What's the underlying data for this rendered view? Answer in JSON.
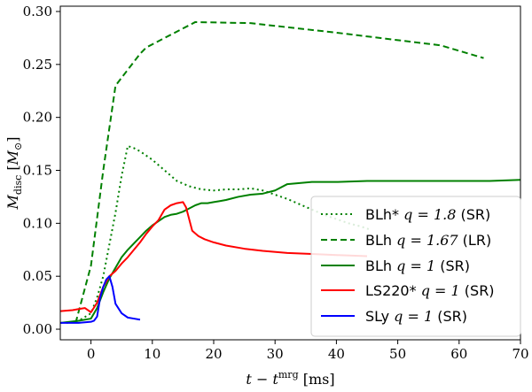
{
  "chart_data": {
    "type": "line",
    "xlabel": "t − t^mrg [ms]",
    "ylabel": "M_disc [M_⊙]",
    "xlim": [
      -5,
      70
    ],
    "ylim": [
      -0.01,
      0.305
    ],
    "grid": false,
    "legend_position": "lower-right",
    "x_ticks": [
      0,
      10,
      20,
      30,
      40,
      50,
      60,
      70
    ],
    "x_tick_labels": [
      "0",
      "10",
      "20",
      "30",
      "40",
      "50",
      "60",
      "70"
    ],
    "y_ticks": [
      0.0,
      0.05,
      0.1,
      0.15,
      0.2,
      0.25,
      0.3
    ],
    "y_tick_labels": [
      "0.00",
      "0.05",
      "0.10",
      "0.15",
      "0.20",
      "0.25",
      "0.30"
    ],
    "series": [
      {
        "name": "BLh* q = 1.8 (SR)",
        "label_model": "BLh*",
        "label_q": "q = 1.8",
        "label_res": "(SR)",
        "color": "#008000",
        "dash": "dotted",
        "x": [
          -4.0,
          -2.0,
          0.0,
          1.0,
          2.0,
          3.0,
          4.0,
          5.0,
          6.0,
          7.0,
          8.0,
          10.0,
          12.0,
          14.0,
          16.0,
          18.0,
          20.0,
          22.0,
          24.0,
          26.0,
          28.0,
          30.0,
          32.0,
          34.0,
          36.0,
          38.0,
          40.0,
          42.0,
          44.0,
          45.5
        ],
        "y": [
          0.006,
          0.008,
          0.015,
          0.03,
          0.05,
          0.08,
          0.11,
          0.145,
          0.173,
          0.171,
          0.168,
          0.16,
          0.15,
          0.14,
          0.135,
          0.132,
          0.131,
          0.132,
          0.132,
          0.133,
          0.131,
          0.127,
          0.123,
          0.118,
          0.113,
          0.108,
          0.104,
          0.1,
          0.097,
          0.094
        ]
      },
      {
        "name": "BLh q = 1.67 (LR)",
        "label_model": "BLh",
        "label_q": "q = 1.67",
        "label_res": "(LR)",
        "color": "#008000",
        "dash": "dashed",
        "x": [
          -2.5,
          0.0,
          2.0,
          4.0,
          6.0,
          8.0,
          9.0,
          12.0,
          17.0,
          26.0,
          40.0,
          57.0,
          64.0
        ],
        "y": [
          0.006,
          0.06,
          0.15,
          0.23,
          0.245,
          0.26,
          0.266,
          0.275,
          0.29,
          0.289,
          0.28,
          0.268,
          0.256
        ]
      },
      {
        "name": "BLh q = 1 (SR)",
        "label_model": "BLh",
        "label_q": "q = 1",
        "label_res": "(SR)",
        "color": "#008000",
        "dash": "solid",
        "x": [
          -5.0,
          -2.0,
          0.0,
          1.0,
          2.0,
          3.0,
          4.0,
          5.0,
          6.0,
          7.0,
          8.0,
          9.0,
          10.0,
          11.0,
          12.0,
          13.0,
          14.0,
          15.0,
          16.0,
          17.0,
          18.0,
          19.0,
          20.0,
          21.0,
          22.0,
          24.0,
          26.0,
          28.0,
          30.0,
          32.0,
          34.0,
          36.0,
          40.0,
          45.0,
          50.0,
          55.0,
          60.0,
          65.0,
          70.0
        ],
        "y": [
          0.006,
          0.008,
          0.01,
          0.02,
          0.035,
          0.048,
          0.058,
          0.068,
          0.075,
          0.081,
          0.087,
          0.093,
          0.098,
          0.102,
          0.106,
          0.108,
          0.109,
          0.111,
          0.114,
          0.117,
          0.119,
          0.119,
          0.12,
          0.121,
          0.122,
          0.125,
          0.127,
          0.128,
          0.131,
          0.137,
          0.138,
          0.139,
          0.139,
          0.14,
          0.14,
          0.14,
          0.14,
          0.14,
          0.141
        ]
      },
      {
        "name": "LS220* q = 1 (SR)",
        "label_model": "LS220*",
        "label_q": "q = 1",
        "label_res": "(SR)",
        "color": "#ff0000",
        "dash": "solid",
        "x": [
          -5.0,
          -3.0,
          -2.0,
          -1.0,
          0.0,
          1.0,
          2.0,
          3.0,
          4.0,
          5.0,
          6.0,
          7.0,
          8.0,
          9.0,
          10.0,
          11.0,
          12.0,
          13.0,
          14.0,
          15.0,
          15.5,
          16.5,
          17.5,
          18.5,
          20.0,
          22.0,
          25.0,
          28.0,
          32.0,
          36.0,
          40.0,
          45.0
        ],
        "y": [
          0.017,
          0.018,
          0.019,
          0.02,
          0.016,
          0.025,
          0.04,
          0.05,
          0.055,
          0.062,
          0.068,
          0.075,
          0.082,
          0.09,
          0.097,
          0.103,
          0.113,
          0.117,
          0.119,
          0.12,
          0.115,
          0.093,
          0.088,
          0.085,
          0.082,
          0.079,
          0.076,
          0.074,
          0.072,
          0.071,
          0.07,
          0.069
        ]
      },
      {
        "name": "SLy q = 1 (SR)",
        "label_model": "SLy",
        "label_q": "q = 1",
        "label_res": "(SR)",
        "color": "#0000ff",
        "dash": "solid",
        "x": [
          -5.0,
          -2.0,
          0.0,
          0.5,
          1.0,
          1.5,
          2.0,
          2.5,
          3.0,
          3.5,
          4.0,
          5.0,
          6.0,
          7.0,
          8.0
        ],
        "y": [
          0.006,
          0.006,
          0.007,
          0.008,
          0.012,
          0.03,
          0.04,
          0.047,
          0.05,
          0.04,
          0.024,
          0.015,
          0.011,
          0.01,
          0.009
        ]
      }
    ]
  }
}
